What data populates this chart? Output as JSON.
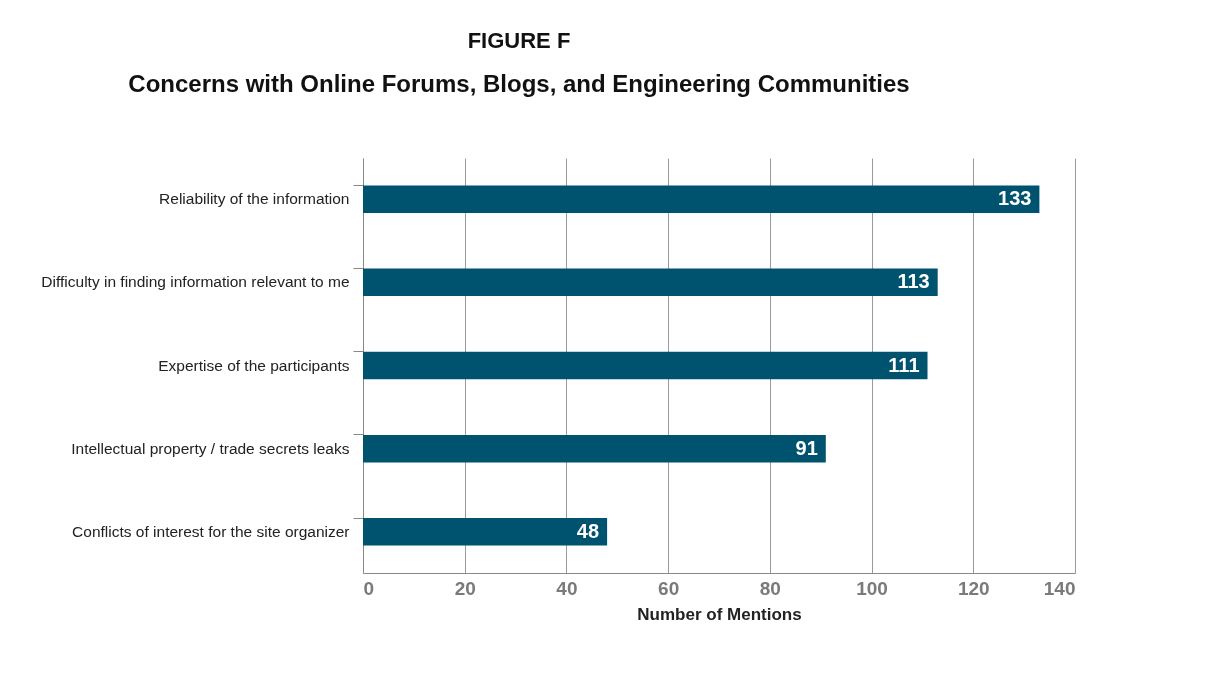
{
  "chart_data": {
    "type": "bar",
    "orientation": "horizontal",
    "title": "FIGURE F",
    "subtitle": "Concerns with Online Forums, Blogs, and Engineering Communities",
    "xlabel": "Number of Mentions",
    "categories": [
      "Reliability of the information",
      "Difficulty in finding information relevant to me",
      "Expertise of the participants",
      "Intellectual property / trade secrets leaks",
      "Conflicts of interest for the site organizer"
    ],
    "values": [
      133,
      113,
      111,
      91,
      48
    ],
    "color": "#00536f",
    "xlim": [
      0,
      140
    ],
    "xticks": [
      0,
      20,
      40,
      60,
      80,
      100,
      120,
      140
    ],
    "grid": "x",
    "data_labels": true
  }
}
